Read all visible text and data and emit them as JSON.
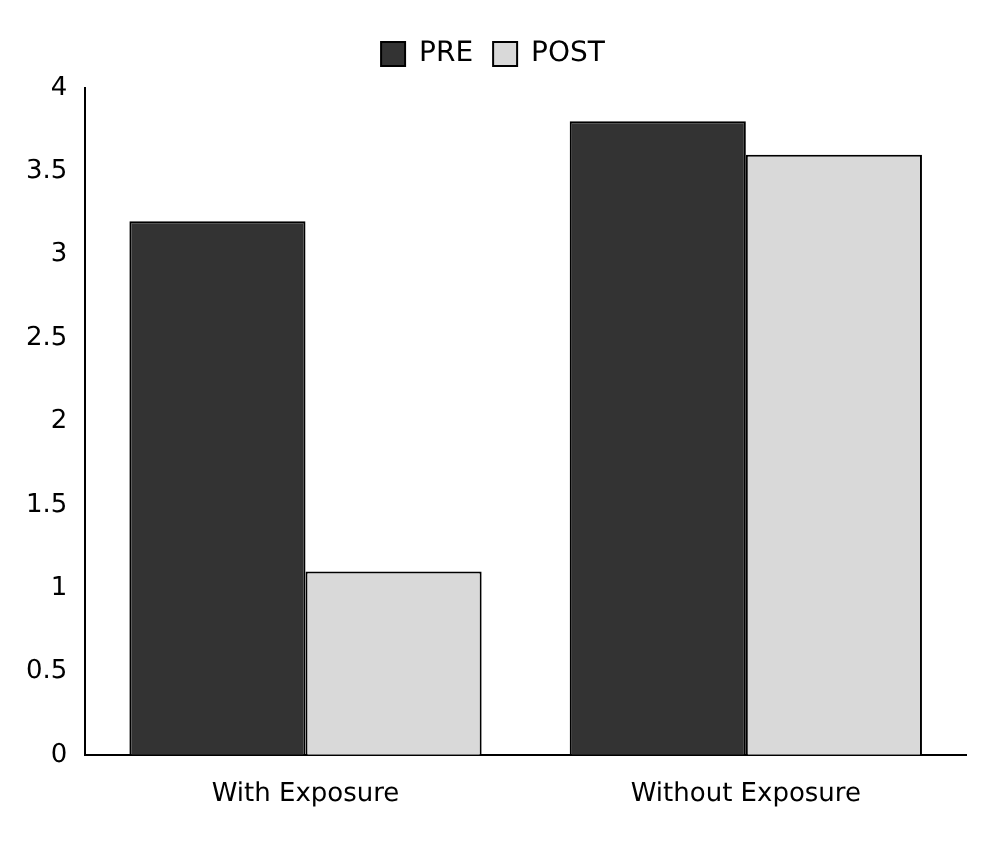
{
  "chart_data": {
    "type": "bar",
    "categories": [
      "With Exposure",
      "Without Exposure"
    ],
    "series": [
      {
        "name": "PRE",
        "color": "#333333",
        "values": [
          3.2,
          3.8
        ]
      },
      {
        "name": "POST",
        "color": "#d9d9d9",
        "values": [
          1.1,
          3.6
        ]
      }
    ],
    "ylim": [
      0,
      4
    ],
    "yticks": [
      0,
      0.5,
      1,
      1.5,
      2,
      2.5,
      3,
      3.5,
      4
    ],
    "grid": false,
    "legend": "top"
  }
}
